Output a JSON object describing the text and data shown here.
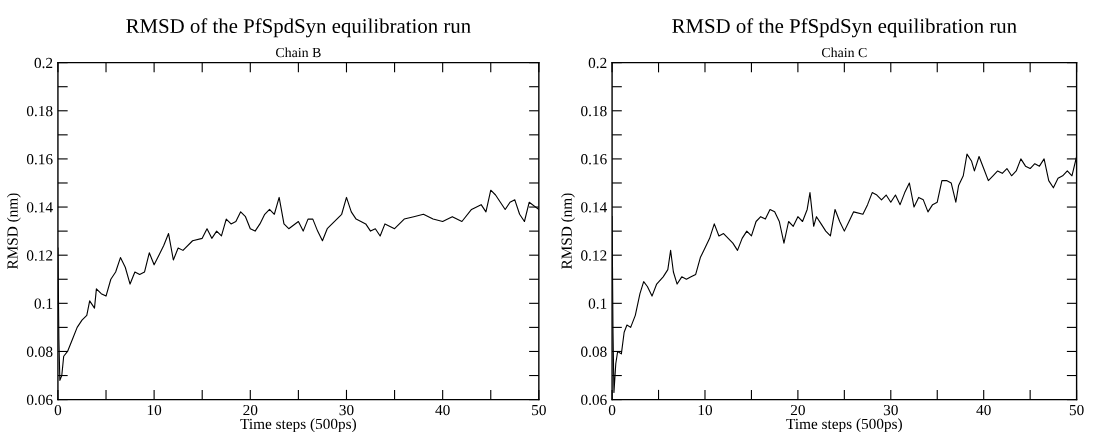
{
  "chart_data": [
    {
      "type": "line",
      "title": "RMSD of the PfSpdSyn equilibration run",
      "subtitle": "Chain B",
      "xlabel": "Time steps (500ps)",
      "ylabel": "RMSD (nm)",
      "xlim": [
        0,
        50
      ],
      "ylim": [
        0.06,
        0.2
      ],
      "xticks": [
        0,
        {
          "value": 5,
          "label": null
        },
        10,
        {
          "value": 15,
          "label": null
        },
        20,
        {
          "value": 25,
          "label": null
        },
        30,
        {
          "value": 35,
          "label": null
        },
        40,
        {
          "value": 45,
          "label": null
        },
        50
      ],
      "yticks": [
        0.06,
        {
          "value": 0.07,
          "label": null
        },
        0.08,
        {
          "value": 0.09,
          "label": null
        },
        0.1,
        {
          "value": 0.11,
          "label": null
        },
        0.12,
        {
          "value": 0.13,
          "label": null
        },
        0.14,
        {
          "value": 0.15,
          "label": null
        },
        0.16,
        {
          "value": 0.17,
          "label": null
        },
        0.18,
        {
          "value": 0.19,
          "label": null
        },
        0.2
      ],
      "grid": false,
      "marker": "none",
      "line_style": "solid",
      "series": [
        {
          "color": "#000000",
          "x": [
            0,
            0.1,
            0.2,
            0.4,
            0.6,
            1,
            1.5,
            2,
            2.5,
            3,
            3.3,
            3.8,
            4,
            4.5,
            5,
            5.5,
            6,
            6.5,
            7,
            7.5,
            8,
            8.5,
            9,
            9.5,
            10,
            10.5,
            11,
            11.5,
            12,
            12.5,
            13,
            14,
            15,
            15.5,
            16,
            16.5,
            17,
            17.5,
            18,
            18.5,
            19,
            19.5,
            20,
            20.5,
            21,
            21.5,
            22,
            22.5,
            23,
            23.5,
            24,
            25,
            25.5,
            26,
            26.5,
            27,
            27.5,
            28,
            29,
            29.5,
            30,
            30.5,
            31,
            32,
            32.5,
            33,
            33.5,
            34,
            35,
            36,
            37,
            38,
            39,
            40,
            41,
            42,
            43,
            44,
            44.5,
            45,
            45.5,
            46,
            46.5,
            47,
            47.5,
            48,
            48.5,
            49,
            50
          ],
          "values": [
            0.123,
            0.085,
            0.068,
            0.07,
            0.078,
            0.08,
            0.085,
            0.09,
            0.093,
            0.095,
            0.101,
            0.098,
            0.106,
            0.104,
            0.103,
            0.11,
            0.113,
            0.119,
            0.115,
            0.108,
            0.113,
            0.112,
            0.113,
            0.121,
            0.116,
            0.12,
            0.124,
            0.129,
            0.118,
            0.123,
            0.122,
            0.126,
            0.127,
            0.131,
            0.127,
            0.13,
            0.128,
            0.135,
            0.133,
            0.134,
            0.138,
            0.136,
            0.131,
            0.13,
            0.133,
            0.137,
            0.139,
            0.137,
            0.144,
            0.133,
            0.131,
            0.134,
            0.13,
            0.135,
            0.135,
            0.13,
            0.126,
            0.131,
            0.135,
            0.137,
            0.144,
            0.138,
            0.135,
            0.133,
            0.13,
            0.131,
            0.128,
            0.133,
            0.131,
            0.135,
            0.136,
            0.137,
            0.135,
            0.134,
            0.136,
            0.134,
            0.139,
            0.141,
            0.138,
            0.147,
            0.145,
            0.142,
            0.139,
            0.142,
            0.143,
            0.137,
            0.134,
            0.142,
            0.139
          ]
        }
      ]
    },
    {
      "type": "line",
      "title": "RMSD of the PfSpdSyn equilibration run",
      "subtitle": "Chain C",
      "xlabel": "Time steps (500ps)",
      "ylabel": "RMSD (nm)",
      "xlim": [
        0,
        50
      ],
      "ylim": [
        0.06,
        0.2
      ],
      "xticks": [
        0,
        {
          "value": 5,
          "label": null
        },
        10,
        {
          "value": 15,
          "label": null
        },
        20,
        {
          "value": 25,
          "label": null
        },
        30,
        {
          "value": 35,
          "label": null
        },
        40,
        {
          "value": 45,
          "label": null
        },
        50
      ],
      "yticks": [
        0.06,
        {
          "value": 0.07,
          "label": null
        },
        0.08,
        {
          "value": 0.09,
          "label": null
        },
        0.1,
        {
          "value": 0.11,
          "label": null
        },
        0.12,
        {
          "value": 0.13,
          "label": null
        },
        0.14,
        {
          "value": 0.15,
          "label": null
        },
        0.16,
        {
          "value": 0.17,
          "label": null
        },
        0.18,
        {
          "value": 0.19,
          "label": null
        },
        0.2
      ],
      "grid": false,
      "marker": "none",
      "line_style": "solid",
      "series": [
        {
          "color": "#000000",
          "x": [
            0,
            0.1,
            0.2,
            0.4,
            0.6,
            1,
            1.3,
            1.6,
            2,
            2.5,
            3,
            3.4,
            3.8,
            4.3,
            4.8,
            5.5,
            6,
            6.3,
            6.6,
            7,
            7.5,
            8,
            8.5,
            9,
            9.5,
            10,
            10.5,
            11,
            11.5,
            12,
            12.5,
            13,
            13.5,
            14,
            14.5,
            15,
            15.5,
            16,
            16.5,
            17,
            17.5,
            18,
            18.5,
            19,
            19.5,
            20,
            20.5,
            21,
            21.3,
            21.7,
            22,
            22.5,
            23,
            23.5,
            24,
            24.5,
            25,
            25.5,
            26,
            27,
            27.5,
            28,
            28.5,
            29,
            29.5,
            30,
            30.5,
            31,
            31.5,
            32,
            32.5,
            33,
            33.5,
            34,
            34.5,
            35,
            35.5,
            36,
            36.5,
            37,
            37.3,
            37.8,
            38.2,
            38.7,
            39,
            39.5,
            40,
            40.5,
            41,
            41.5,
            42,
            42.5,
            43,
            43.5,
            44,
            44.5,
            45,
            45.5,
            46,
            46.5,
            47,
            47.5,
            48,
            48.5,
            49,
            49.5,
            50
          ],
          "values": [
            0.136,
            0.088,
            0.063,
            0.075,
            0.08,
            0.079,
            0.088,
            0.091,
            0.09,
            0.095,
            0.104,
            0.109,
            0.107,
            0.103,
            0.108,
            0.111,
            0.114,
            0.122,
            0.113,
            0.108,
            0.111,
            0.11,
            0.111,
            0.112,
            0.119,
            0.123,
            0.127,
            0.133,
            0.128,
            0.129,
            0.127,
            0.125,
            0.122,
            0.127,
            0.13,
            0.128,
            0.134,
            0.136,
            0.135,
            0.139,
            0.138,
            0.134,
            0.125,
            0.134,
            0.132,
            0.136,
            0.134,
            0.139,
            0.146,
            0.132,
            0.136,
            0.133,
            0.13,
            0.128,
            0.139,
            0.134,
            0.13,
            0.134,
            0.138,
            0.137,
            0.141,
            0.146,
            0.145,
            0.143,
            0.145,
            0.142,
            0.145,
            0.141,
            0.146,
            0.15,
            0.14,
            0.144,
            0.143,
            0.138,
            0.141,
            0.142,
            0.151,
            0.151,
            0.15,
            0.142,
            0.149,
            0.153,
            0.162,
            0.159,
            0.155,
            0.161,
            0.156,
            0.151,
            0.153,
            0.155,
            0.154,
            0.156,
            0.153,
            0.155,
            0.16,
            0.157,
            0.156,
            0.158,
            0.157,
            0.16,
            0.151,
            0.148,
            0.152,
            0.153,
            0.155,
            0.153,
            0.161
          ]
        }
      ]
    }
  ]
}
